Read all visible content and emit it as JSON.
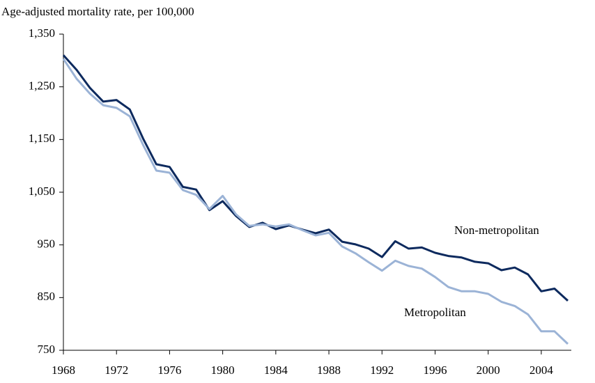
{
  "chart_data": {
    "type": "line",
    "title": "Age-adjusted mortality rate, per 100,000",
    "x": [
      1968,
      1969,
      1970,
      1971,
      1972,
      1973,
      1974,
      1975,
      1976,
      1977,
      1978,
      1979,
      1980,
      1981,
      1982,
      1983,
      1984,
      1985,
      1986,
      1987,
      1988,
      1989,
      1990,
      1991,
      1992,
      1993,
      1994,
      1995,
      1996,
      1997,
      1998,
      1999,
      2000,
      2001,
      2002,
      2003,
      2004,
      2005,
      2006
    ],
    "xlim": [
      1968,
      2006
    ],
    "xticks": [
      1968,
      1972,
      1976,
      1980,
      1984,
      1988,
      1992,
      1996,
      2000,
      2004
    ],
    "ylim": [
      750,
      1350
    ],
    "yticks": [
      {
        "value": 750,
        "label": "750"
      },
      {
        "value": 850,
        "label": "850"
      },
      {
        "value": 950,
        "label": "950"
      },
      {
        "value": 1050,
        "label": "1,050"
      },
      {
        "value": 1150,
        "label": "1,150"
      },
      {
        "value": 1250,
        "label": "1,250"
      },
      {
        "value": 1350,
        "label": "1,350"
      }
    ],
    "grid": false,
    "series": [
      {
        "name": "Non-metropolitan",
        "color": "#0d2a5e",
        "values": [
          1310,
          1282,
          1248,
          1222,
          1225,
          1207,
          1152,
          1103,
          1098,
          1060,
          1055,
          1016,
          1033,
          1005,
          984,
          992,
          980,
          987,
          979,
          972,
          979,
          956,
          951,
          943,
          927,
          957,
          943,
          945,
          935,
          929,
          926,
          918,
          915,
          902,
          907,
          894,
          862,
          867,
          844
        ]
      },
      {
        "name": "Metropolitan",
        "color": "#9bb3d6",
        "values": [
          1303,
          1265,
          1237,
          1215,
          1210,
          1194,
          1140,
          1091,
          1087,
          1054,
          1045,
          1018,
          1043,
          1008,
          986,
          989,
          985,
          989,
          978,
          968,
          973,
          947,
          934,
          917,
          901,
          920,
          910,
          905,
          889,
          870,
          862,
          862,
          857,
          842,
          834,
          818,
          786,
          786,
          762
        ]
      }
    ]
  }
}
